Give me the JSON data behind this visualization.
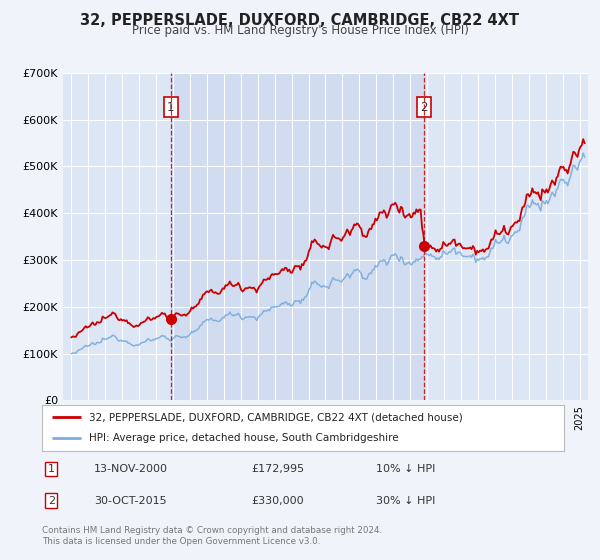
{
  "title": "32, PEPPERSLADE, DUXFORD, CAMBRIDGE, CB22 4XT",
  "subtitle": "Price paid vs. HM Land Registry's House Price Index (HPI)",
  "background_color": "#f0f4fa",
  "plot_bg_color": "#dde6f5",
  "red_line_color": "#cc0000",
  "blue_line_color": "#7aacda",
  "vline_color": "#cc0000",
  "shade_color": "#ccd8ee",
  "sale1_date_x": 2000.87,
  "sale1_price": 172995,
  "sale1_label": "1",
  "sale2_date_x": 2015.83,
  "sale2_price": 330000,
  "sale2_label": "2",
  "ylim": [
    0,
    700000
  ],
  "xlim": [
    1994.5,
    2025.5
  ],
  "yticks": [
    0,
    100000,
    200000,
    300000,
    400000,
    500000,
    600000,
    700000
  ],
  "ytick_labels": [
    "£0",
    "£100K",
    "£200K",
    "£300K",
    "£400K",
    "£500K",
    "£600K",
    "£700K"
  ],
  "legend_line1": "32, PEPPERSLADE, DUXFORD, CAMBRIDGE, CB22 4XT (detached house)",
  "legend_line2": "HPI: Average price, detached house, South Cambridgeshire",
  "table_row1_num": "1",
  "table_row1_date": "13-NOV-2000",
  "table_row1_price": "£172,995",
  "table_row1_hpi": "10% ↓ HPI",
  "table_row2_num": "2",
  "table_row2_date": "30-OCT-2015",
  "table_row2_price": "£330,000",
  "table_row2_hpi": "30% ↓ HPI",
  "footer_line1": "Contains HM Land Registry data © Crown copyright and database right 2024.",
  "footer_line2": "This data is licensed under the Open Government Licence v3.0."
}
